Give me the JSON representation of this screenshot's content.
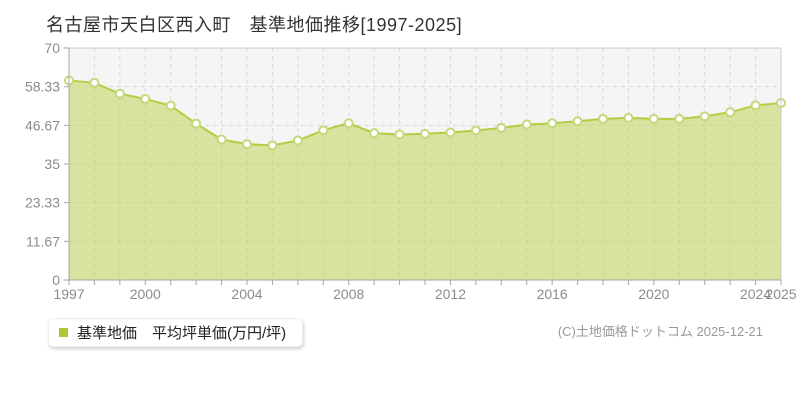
{
  "title": {
    "text": "名古屋市天白区西入町　基準地価推移[1997-2025]"
  },
  "legend": {
    "label": "基準地価　平均坪単価(万円/坪)"
  },
  "footer": {
    "copyright": "(C)土地価格ドットコム 2025-12-21"
  },
  "chart_data": {
    "type": "area",
    "title": "名古屋市天白区西入町　基準地価推移[1997-2025]",
    "xlabel": "",
    "ylabel": "平均坪単価(万円/坪)",
    "x": [
      1997,
      1998,
      1999,
      2000,
      2001,
      2002,
      2003,
      2004,
      2005,
      2006,
      2007,
      2008,
      2009,
      2010,
      2011,
      2012,
      2013,
      2014,
      2015,
      2016,
      2017,
      2018,
      2019,
      2020,
      2021,
      2022,
      2023,
      2024,
      2025
    ],
    "series": [
      {
        "name": "基準地価　平均坪単価(万円/坪)",
        "values": [
          60.2,
          59.5,
          56.2,
          54.6,
          52.6,
          47.2,
          42.4,
          41.0,
          40.6,
          42.1,
          45.2,
          47.3,
          44.3,
          43.9,
          44.1,
          44.5,
          45.1,
          45.9,
          46.9,
          47.3,
          47.9,
          48.6,
          48.9,
          48.6,
          48.6,
          49.4,
          50.6,
          52.7,
          53.4
        ]
      }
    ],
    "ylim": [
      0,
      70
    ],
    "yticks": [
      0,
      11.67,
      23.33,
      35,
      46.67,
      58.33,
      70
    ],
    "ytick_labels": [
      "0",
      "11.67",
      "23.33",
      "35",
      "46.67",
      "58.33",
      "70"
    ],
    "xtick_years": [
      1997,
      2000,
      2004,
      2008,
      2012,
      2016,
      2020,
      2024,
      2025
    ],
    "xtick_labels": [
      "1997",
      "2000",
      "2004",
      "2008",
      "2012",
      "2016",
      "2020",
      "2024",
      "2025"
    ],
    "grid": "dashed",
    "legend_position": "bottom-left",
    "colors": {
      "plot_background": "#f5f5f5",
      "grid_line": "#d9d9d9",
      "border": "#cccccc",
      "axis": "#a6a6a6",
      "tick_text": "#8c8c8c",
      "area_fill": "#b9d24a",
      "area_opacity": "0.5",
      "line": "#b2ce45",
      "point_fill": "#ffffff",
      "point_stroke": "#c3d97b",
      "legend_marker": "#a9c832"
    }
  }
}
